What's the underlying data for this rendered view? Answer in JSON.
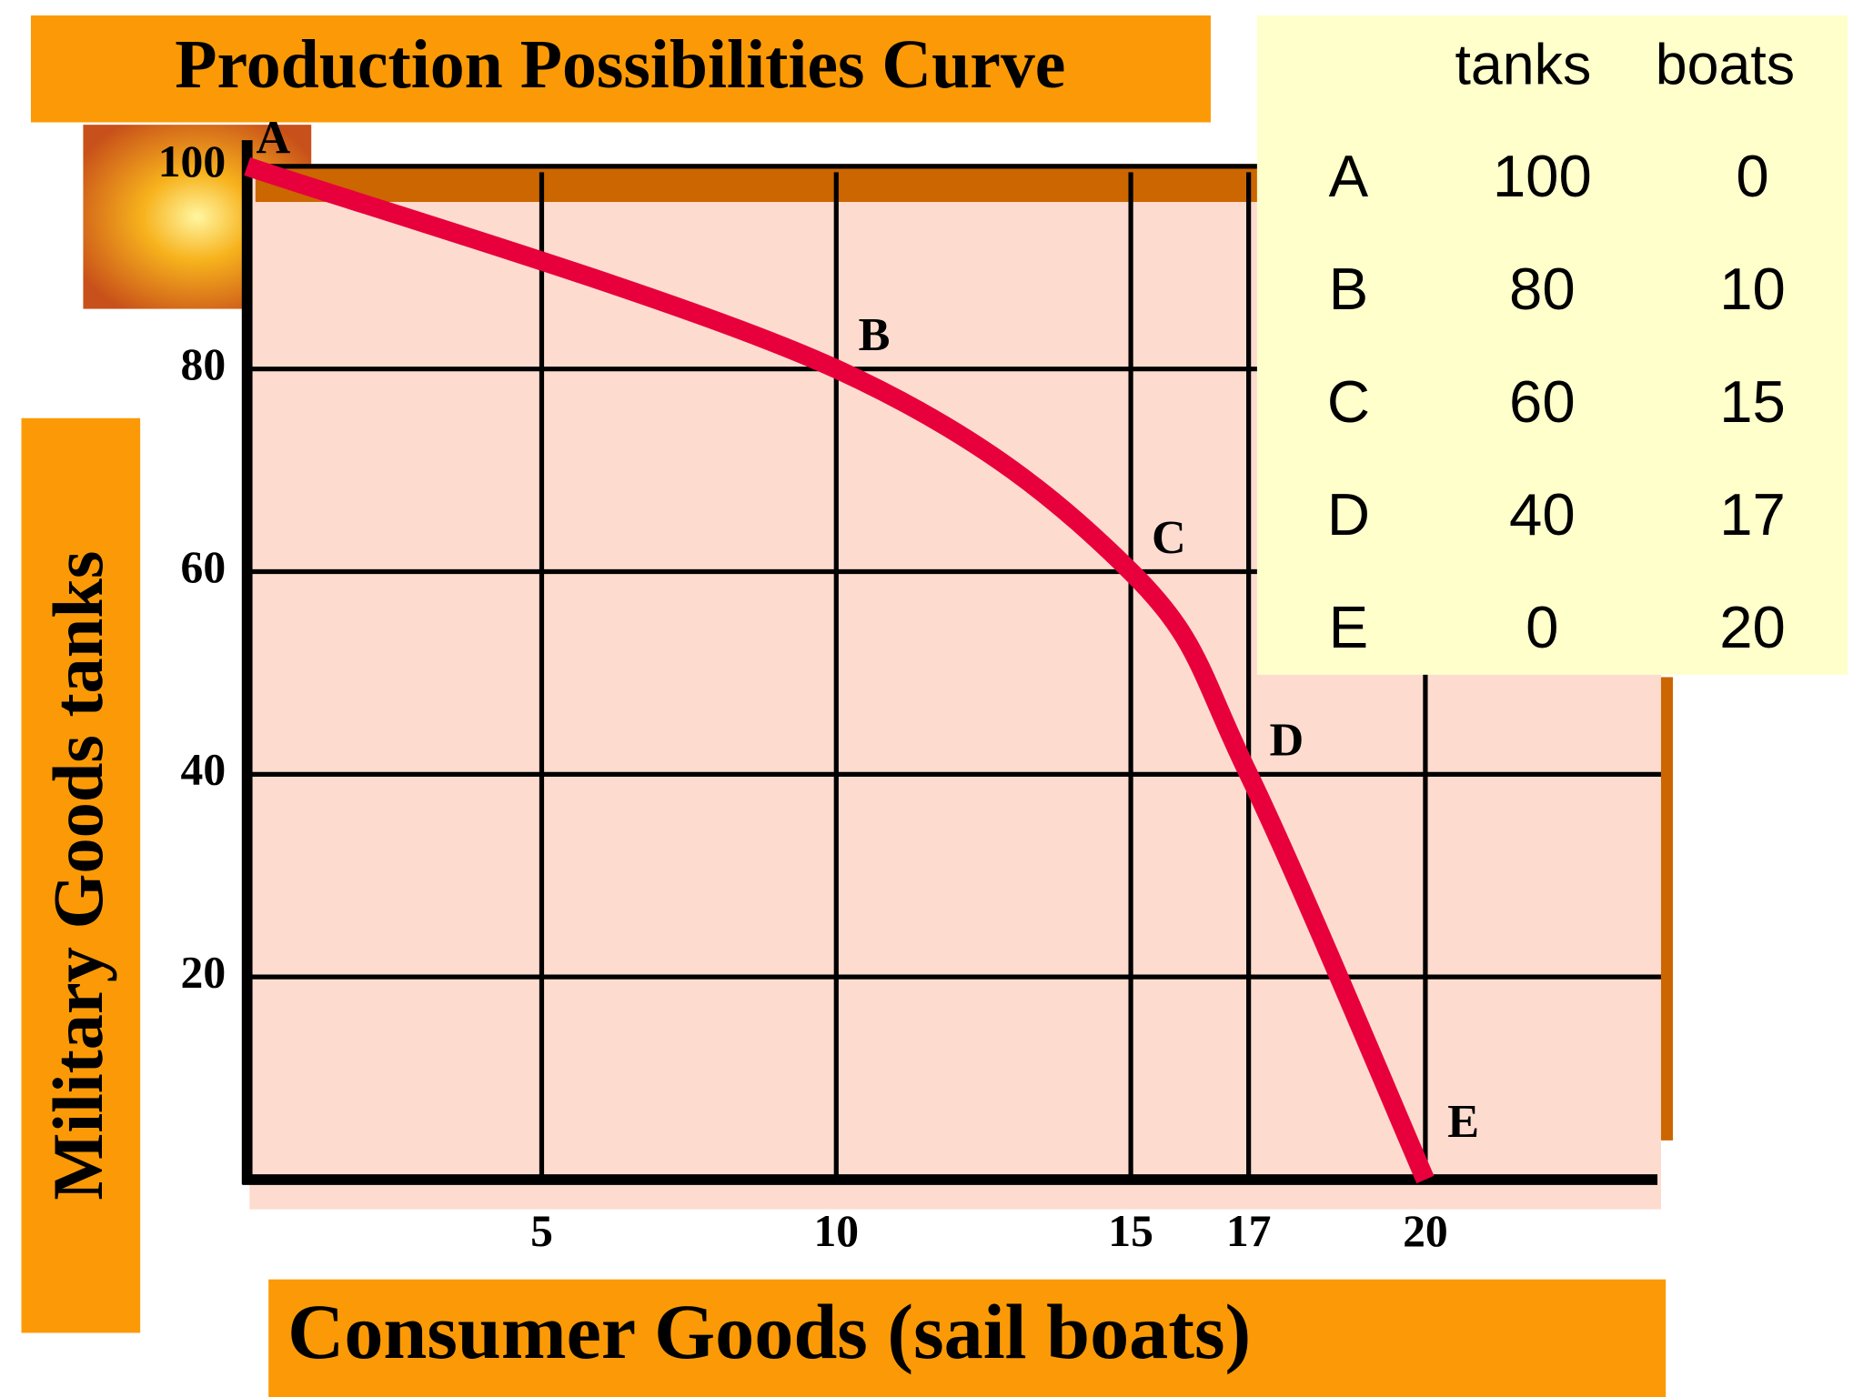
{
  "chart_data": {
    "type": "line",
    "title": "Production Possibilities Curve",
    "xlabel": "Consumer Goods (sail boats)",
    "ylabel": "Military Goods tanks",
    "x": [
      0,
      10,
      15,
      17,
      20
    ],
    "values": [
      100,
      80,
      60,
      40,
      0
    ],
    "point_labels": [
      "A",
      "B",
      "C",
      "D",
      "E"
    ],
    "color": "#e8003c",
    "xlim": [
      0,
      24
    ],
    "ylim": [
      0,
      100
    ],
    "xticks": [
      5,
      10,
      15,
      17,
      20
    ],
    "yticks": [
      20,
      40,
      60,
      80,
      100
    ],
    "grid": true,
    "table_columns": [
      "tanks",
      "boats"
    ]
  }
}
